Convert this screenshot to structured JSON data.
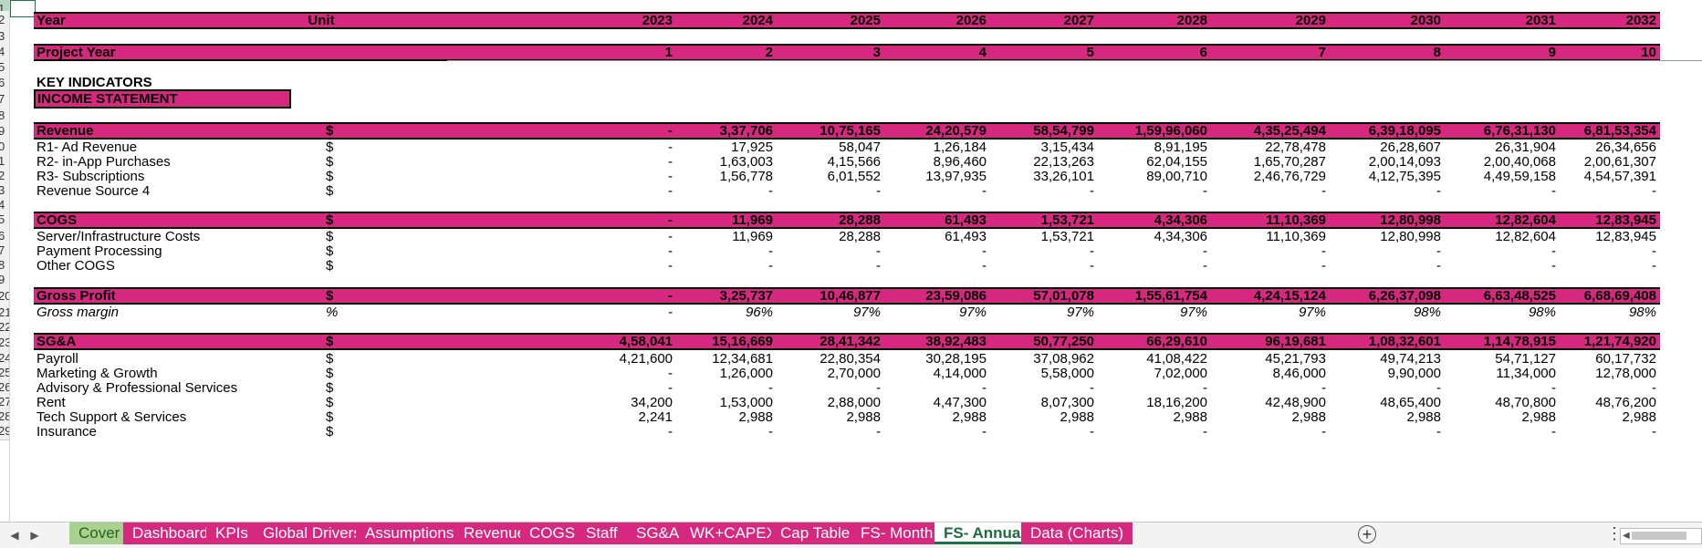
{
  "header": {
    "year_label": "Year",
    "unit_label": "Unit",
    "years": [
      "2023",
      "2024",
      "2025",
      "2026",
      "2027",
      "2028",
      "2029",
      "2030",
      "2031",
      "2032"
    ],
    "project_year_label": "Project Year",
    "project_years": [
      "1",
      "2",
      "3",
      "4",
      "5",
      "6",
      "7",
      "8",
      "9",
      "10"
    ]
  },
  "row_numbers": [
    "1",
    "2",
    "3",
    "4",
    "5",
    "6",
    "7",
    "8",
    "9",
    "0",
    "1",
    "2",
    "3",
    "4",
    "5",
    "6",
    "7",
    "8",
    "9",
    "20",
    "21",
    "22",
    "23",
    "24",
    "25",
    "26",
    "27",
    "28",
    "29"
  ],
  "key_indicators": "KEY INDICATORS",
  "income_statement": "INCOME STATEMENT",
  "revenue": {
    "label": "Revenue",
    "unit": "$",
    "values": [
      "-",
      "3,37,706",
      "10,75,165",
      "24,20,579",
      "58,54,799",
      "1,59,96,060",
      "4,35,25,494",
      "6,39,18,095",
      "6,76,31,130",
      "6,81,53,354"
    ],
    "rows": [
      {
        "label": "R1- Ad Revenue",
        "unit": "$",
        "values": [
          "-",
          "17,925",
          "58,047",
          "1,26,184",
          "3,15,434",
          "8,91,195",
          "22,78,478",
          "26,28,607",
          "26,31,904",
          "26,34,656"
        ]
      },
      {
        "label": "R2- in-App Purchases",
        "unit": "$",
        "values": [
          "-",
          "1,63,003",
          "4,15,566",
          "8,96,460",
          "22,13,263",
          "62,04,155",
          "1,65,70,287",
          "2,00,14,093",
          "2,00,40,068",
          "2,00,61,307"
        ]
      },
      {
        "label": "R3- Subscriptions",
        "unit": "$",
        "values": [
          "-",
          "1,56,778",
          "6,01,552",
          "13,97,935",
          "33,26,101",
          "89,00,710",
          "2,46,76,729",
          "4,12,75,395",
          "4,49,59,158",
          "4,54,57,391"
        ]
      },
      {
        "label": "Revenue Source 4",
        "unit": "$",
        "values": [
          "-",
          "-",
          "-",
          "-",
          "-",
          "-",
          "-",
          "-",
          "-",
          "-"
        ]
      }
    ]
  },
  "cogs": {
    "label": "COGS",
    "unit": "$",
    "values": [
      "-",
      "11,969",
      "28,288",
      "61,493",
      "1,53,721",
      "4,34,306",
      "11,10,369",
      "12,80,998",
      "12,82,604",
      "12,83,945"
    ],
    "rows": [
      {
        "label": "Server/Infrastructure Costs",
        "unit": "$",
        "values": [
          "-",
          "11,969",
          "28,288",
          "61,493",
          "1,53,721",
          "4,34,306",
          "11,10,369",
          "12,80,998",
          "12,82,604",
          "12,83,945"
        ]
      },
      {
        "label": "Payment Processing",
        "unit": "$",
        "values": [
          "-",
          "-",
          "-",
          "-",
          "-",
          "-",
          "-",
          "-",
          "-",
          "-"
        ]
      },
      {
        "label": "Other COGS",
        "unit": "$",
        "values": [
          "-",
          "-",
          "-",
          "-",
          "-",
          "-",
          "-",
          "-",
          "-",
          "-"
        ]
      }
    ]
  },
  "gross_profit": {
    "label": "Gross Profit",
    "unit": "$",
    "values": [
      "-",
      "3,25,737",
      "10,46,877",
      "23,59,086",
      "57,01,078",
      "1,55,61,754",
      "4,24,15,124",
      "6,26,37,098",
      "6,63,48,525",
      "6,68,69,408"
    ]
  },
  "gross_margin": {
    "label": "Gross margin",
    "unit": "%",
    "values": [
      "-",
      "96%",
      "97%",
      "97%",
      "97%",
      "97%",
      "97%",
      "98%",
      "98%",
      "98%"
    ]
  },
  "sga": {
    "label": "SG&A",
    "unit": "$",
    "values": [
      "4,58,041",
      "15,16,669",
      "28,41,342",
      "38,92,483",
      "50,77,250",
      "66,29,610",
      "96,19,681",
      "1,08,32,601",
      "1,14,78,915",
      "1,21,74,920"
    ],
    "rows": [
      {
        "label": "Payroll",
        "unit": "$",
        "values": [
          "4,21,600",
          "12,34,681",
          "22,80,354",
          "30,28,195",
          "37,08,962",
          "41,08,422",
          "45,21,793",
          "49,74,213",
          "54,71,127",
          "60,17,732"
        ]
      },
      {
        "label": "Marketing & Growth",
        "unit": "$",
        "values": [
          "-",
          "1,26,000",
          "2,70,000",
          "4,14,000",
          "5,58,000",
          "7,02,000",
          "8,46,000",
          "9,90,000",
          "11,34,000",
          "12,78,000"
        ]
      },
      {
        "label": "Advisory & Professional Services",
        "unit": "$",
        "values": [
          "-",
          "-",
          "-",
          "-",
          "-",
          "-",
          "-",
          "-",
          "-",
          "-"
        ]
      },
      {
        "label": "Rent",
        "unit": "$",
        "values": [
          "34,200",
          "1,53,000",
          "2,88,000",
          "4,47,300",
          "8,07,300",
          "18,16,200",
          "42,48,900",
          "48,65,400",
          "48,70,800",
          "48,76,200"
        ]
      },
      {
        "label": "Tech Support & Services",
        "unit": "$",
        "values": [
          "2,241",
          "2,988",
          "2,988",
          "2,988",
          "2,988",
          "2,988",
          "2,988",
          "2,988",
          "2,988",
          "2,988"
        ]
      },
      {
        "label": "Insurance",
        "unit": "$",
        "values": [
          "-",
          "-",
          "-",
          "-",
          "-",
          "-",
          "-",
          "-",
          "-",
          "-"
        ]
      }
    ]
  },
  "tabs": [
    "Cover",
    "Dashboard",
    "KPIs",
    "Global Drivers",
    "Assumptions",
    "Revenue",
    "COGS",
    "Staff",
    "SG&A",
    "WK+CAPEX",
    "Cap Table",
    "FS- Month",
    "FS- Annual",
    "Data (Charts)"
  ],
  "active_tab": "FS- Annual",
  "colors": {
    "accent": "#d6287f",
    "cover_tab": "#a9d18e",
    "excel_green": "#217346"
  },
  "icons": {
    "prev": "caret-left-icon",
    "next": "caret-right-icon",
    "add": "plus-circle-icon",
    "more": "vertical-ellipsis-icon"
  }
}
